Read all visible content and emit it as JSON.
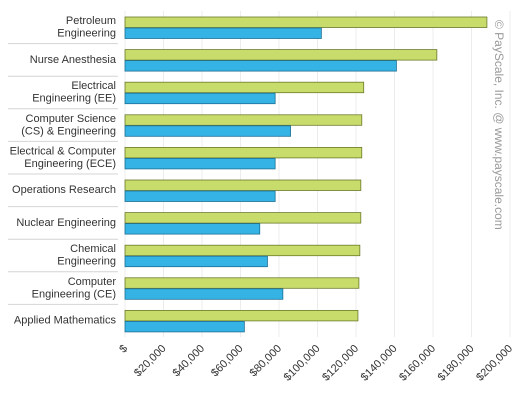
{
  "chart_data": {
    "type": "bar",
    "orientation": "horizontal",
    "categories": [
      [
        "Petroleum",
        "Engineering"
      ],
      [
        "Nurse Anesthesia"
      ],
      [
        "Electrical",
        "Engineering (EE)"
      ],
      [
        "Computer Science",
        "(CS) & Engineering"
      ],
      [
        "Electrical & Computer",
        "Engineering (ECE)"
      ],
      [
        "Operations Research"
      ],
      [
        "Nuclear Engineering"
      ],
      [
        "Chemical",
        "Engineering"
      ],
      [
        "Computer",
        "Engineering (CE)"
      ],
      [
        "Applied Mathematics"
      ]
    ],
    "series": [
      {
        "color": "#c8dc6c",
        "stroke": "#6b7a2a",
        "values": [
          188000,
          162000,
          124000,
          123000,
          123000,
          122500,
          122500,
          122000,
          121500,
          121000
        ]
      },
      {
        "color": "#35b3e4",
        "stroke": "#1d6f94",
        "values": [
          102000,
          141000,
          78000,
          86000,
          78000,
          78000,
          70000,
          74000,
          82000,
          62000
        ]
      }
    ],
    "xlim": [
      0,
      200000
    ],
    "xticks": [
      "$",
      "$20,000",
      "$40,000",
      "$60,000",
      "$80,000",
      "$100,000",
      "$120,000",
      "$140,000",
      "$160,000",
      "$180,000",
      "$200,000"
    ],
    "grid": true,
    "watermark": "© PayScale, Inc. @ www.payscale.com"
  }
}
